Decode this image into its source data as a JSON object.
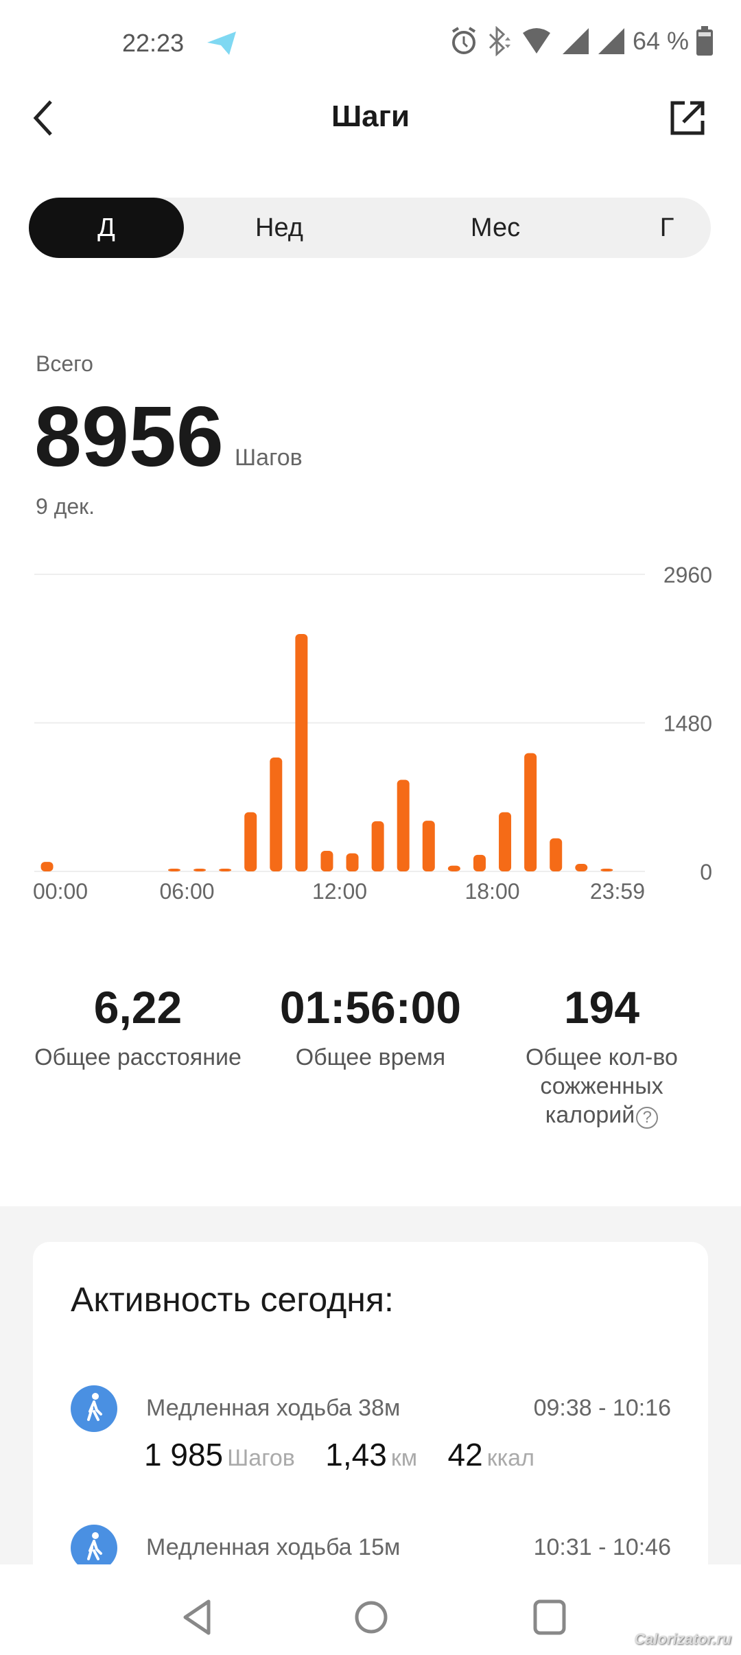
{
  "status_bar": {
    "time": "22:23",
    "battery": "64 %",
    "icons": [
      "telegram-icon",
      "alarm-icon",
      "bluetooth-icon",
      "wifi-icon",
      "signal-icon",
      "signal-icon",
      "battery-icon"
    ]
  },
  "header": {
    "title": "Шаги",
    "back_icon": "chevron-left-icon",
    "share_icon": "share-icon"
  },
  "tabs": [
    {
      "label": "Д",
      "selected": true
    },
    {
      "label": "Нед"
    },
    {
      "label": "Мес"
    },
    {
      "label": "Г"
    }
  ],
  "summary": {
    "label": "Всего",
    "value": "8956",
    "unit": "Шагов",
    "date": "9 дек."
  },
  "chart_data": {
    "type": "bar",
    "categories": [
      "00",
      "01",
      "02",
      "03",
      "04",
      "05",
      "06",
      "07",
      "08",
      "09",
      "10",
      "11",
      "12",
      "13",
      "14",
      "15",
      "16",
      "17",
      "18",
      "19",
      "20",
      "21",
      "22",
      "23"
    ],
    "values": [
      95,
      0,
      0,
      0,
      0,
      15,
      5,
      5,
      590,
      1135,
      2365,
      205,
      180,
      500,
      913,
      505,
      57,
      165,
      590,
      1178,
      330,
      75,
      15,
      0
    ],
    "ylim": [
      0,
      2960
    ],
    "y_ticks": [
      "2960",
      "1480",
      "0"
    ],
    "x_ticks": [
      "00:00",
      "06:00",
      "12:00",
      "18:00",
      "23:59"
    ],
    "grid": true,
    "color": "#f56b17"
  },
  "stats": [
    {
      "value": "6,22",
      "label": "Общее расстояние"
    },
    {
      "value": "01:56:00",
      "label": "Общее время"
    },
    {
      "value": "194",
      "label": "Общее кол-во сожженных калорий"
    }
  ],
  "activity": {
    "title": "Активность сегодня:",
    "items": [
      {
        "name": "Медленная ходьба 38м",
        "time": "09:38 - 10:16",
        "steps": "1 985",
        "steps_unit": "Шагов",
        "distance": "1,43",
        "distance_unit": "км",
        "calories": "42",
        "calories_unit": "ккал"
      },
      {
        "name": "Медленная ходьба 15м",
        "time": "10:31 - 10:46"
      }
    ]
  },
  "watermark": "Calorizator.ru"
}
